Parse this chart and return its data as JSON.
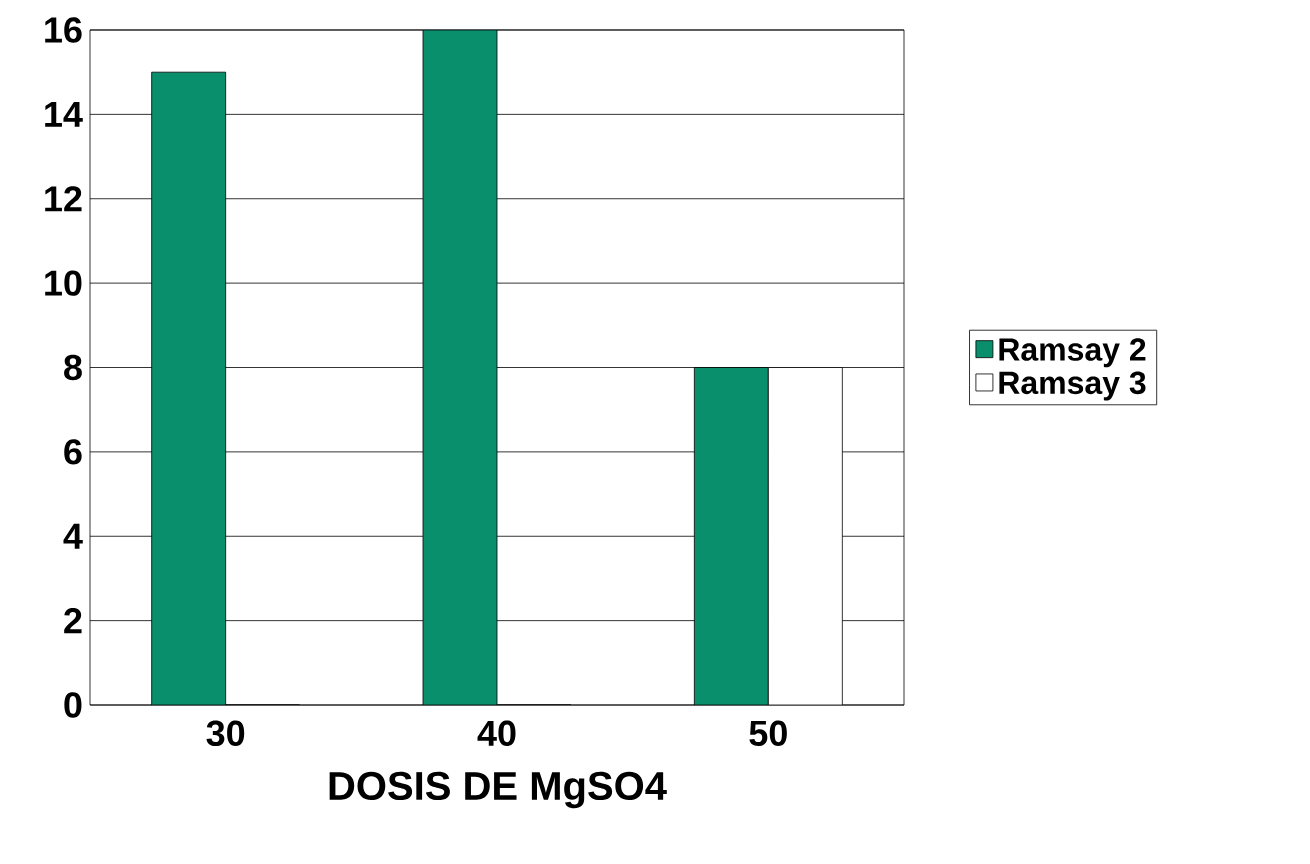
{
  "chart_data": {
    "type": "bar",
    "xlabel": "DOSIS DE MgSO4",
    "categories": [
      "30",
      "40",
      "50"
    ],
    "series": [
      {
        "name": "Ramsay 2",
        "color": "#0a8f6c",
        "values": [
          15,
          16,
          8
        ]
      },
      {
        "name": "Ramsay 3",
        "color": "#ffffff",
        "values": [
          0,
          0,
          8
        ]
      }
    ],
    "ylim": [
      0,
      16
    ],
    "yticks": [
      0,
      2,
      4,
      6,
      8,
      10,
      12,
      14,
      16
    ],
    "grid": "y",
    "legend": "right"
  }
}
